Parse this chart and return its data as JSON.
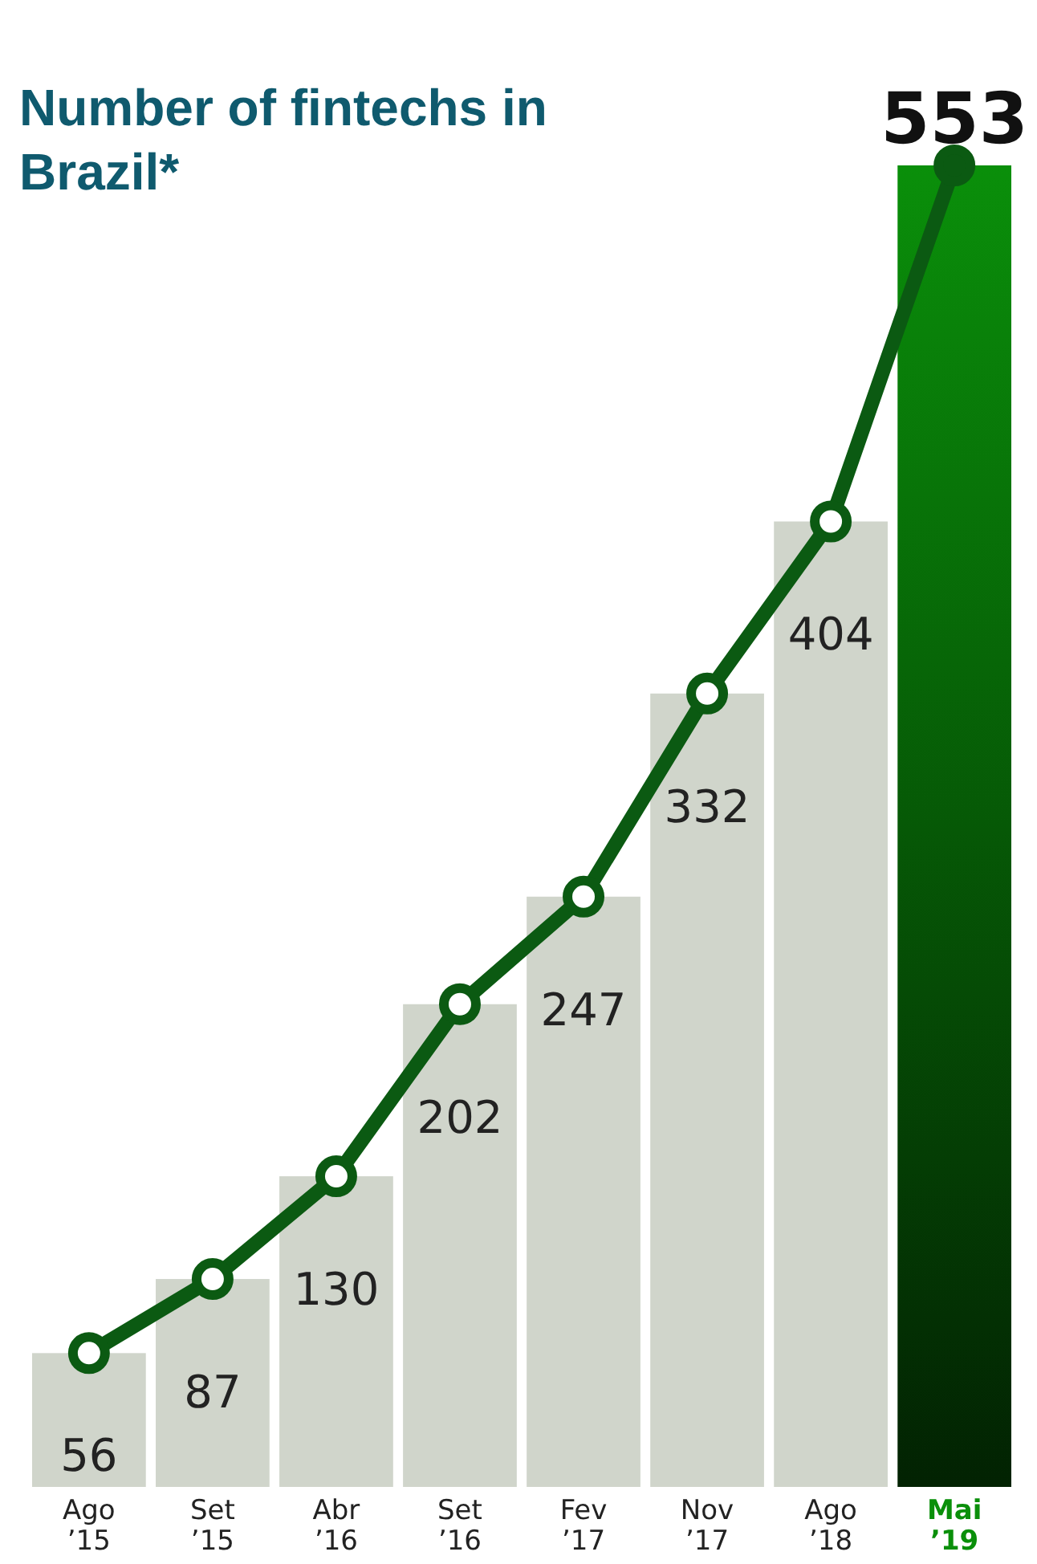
{
  "chart_data": {
    "type": "bar",
    "title": "Number of fintechs in Brazil*",
    "categories": [
      "Ago ’15",
      "Set ’15",
      "Abr ’16",
      "Set ’16",
      "Fev ’17",
      "Nov ’17",
      "Ago ’18",
      "Mai ’19"
    ],
    "values": [
      56,
      87,
      130,
      202,
      247,
      332,
      404,
      553
    ],
    "colors": [
      "#d0d5cb",
      "#d0d5cb",
      "#d0d5cb",
      "#d0d5cb",
      "#d0d5cb",
      "#d0d5cb",
      "#d0d5cb",
      "#0a8f0a"
    ],
    "data_labels": true,
    "series": [
      {
        "type": "line",
        "color": "#0b5a12",
        "values": [
          56,
          87,
          130,
          202,
          247,
          332,
          404,
          553
        ],
        "value_labels": [
          null,
          null,
          null,
          null,
          null,
          null,
          null,
          null
        ]
      }
    ],
    "marker": "circle",
    "line_style": "solid",
    "grid": false
  }
}
